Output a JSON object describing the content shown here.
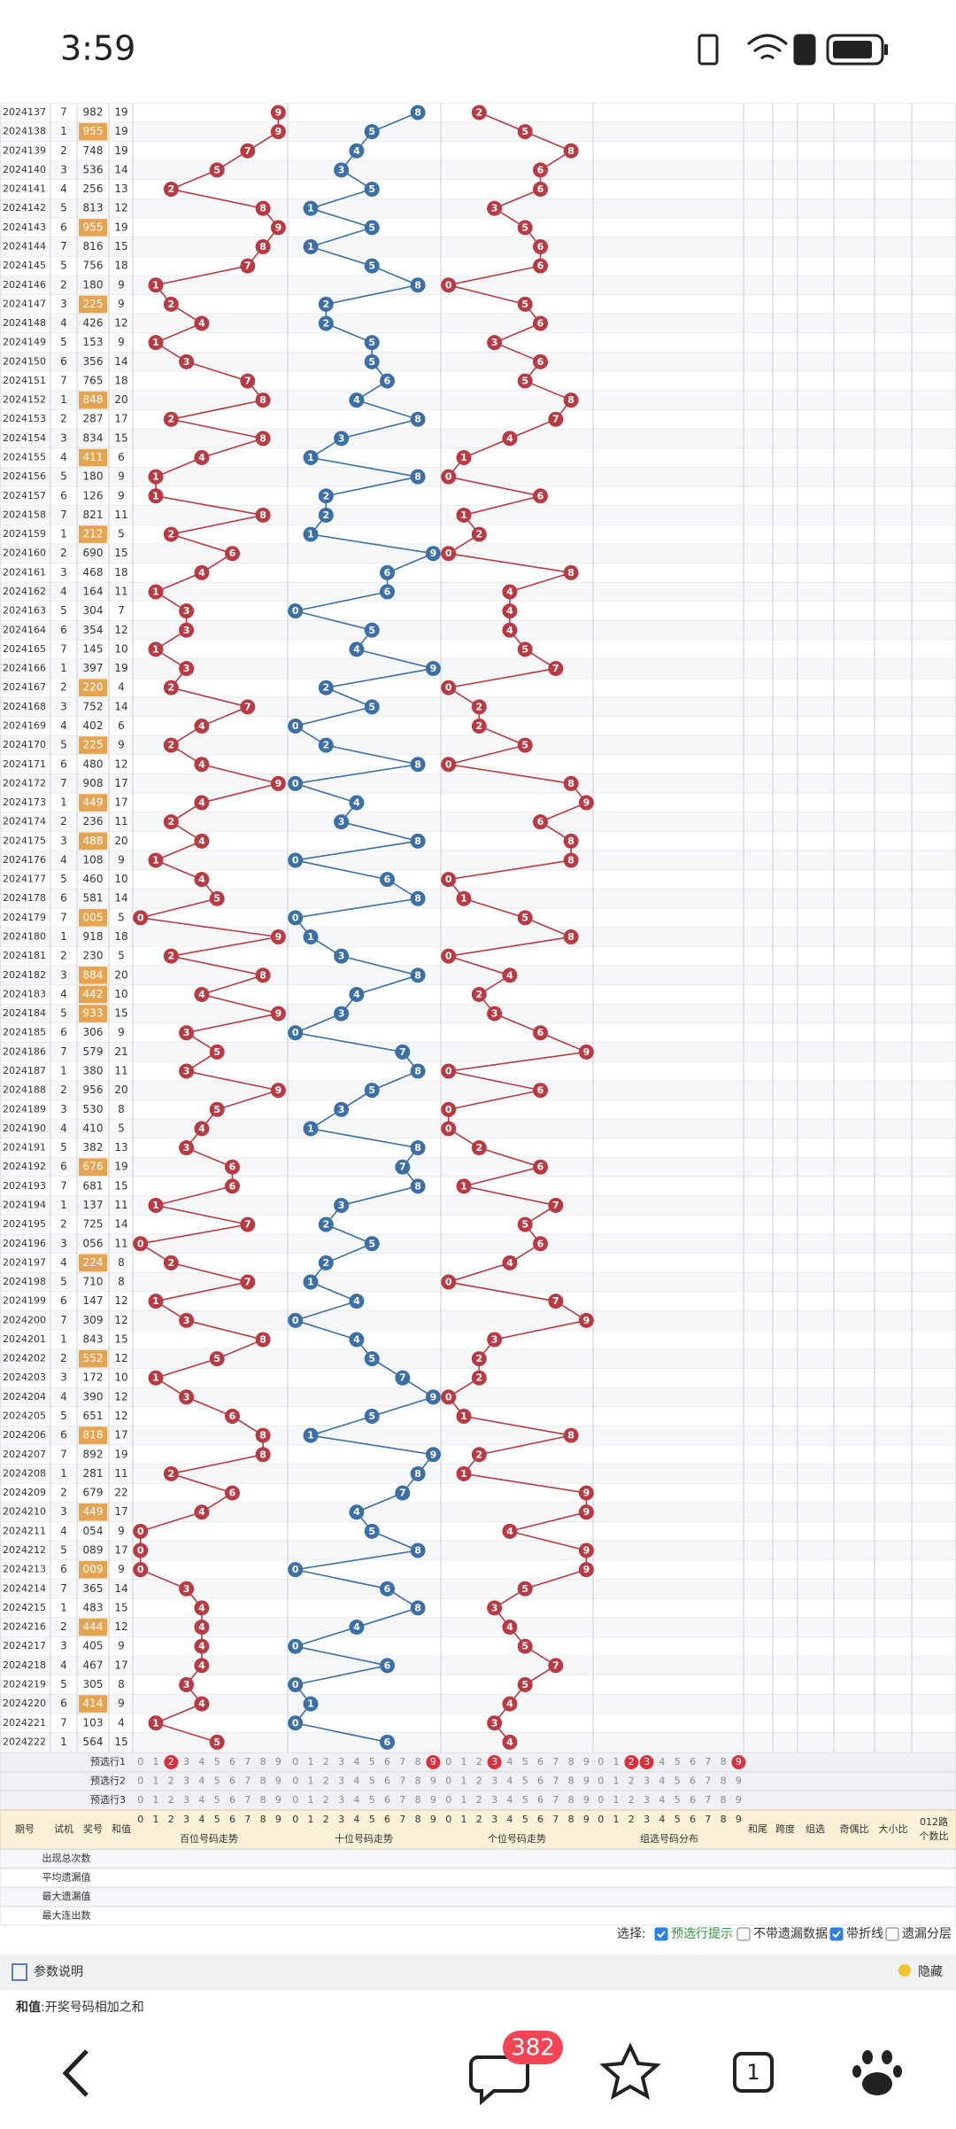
{
  "status_bar": {
    "time": "3:59"
  },
  "table": {
    "rows": [
      [
        "2024137",
        7,
        "982",
        19,
        [
          9,
          8,
          2
        ]
      ],
      [
        "2024138",
        1,
        "955",
        19,
        [
          9,
          5,
          5
        ]
      ],
      [
        "2024139",
        2,
        "748",
        19,
        [
          7,
          4,
          8
        ]
      ],
      [
        "2024140",
        3,
        "536",
        14,
        [
          5,
          3,
          6
        ]
      ],
      [
        "2024141",
        4,
        "256",
        13,
        [
          2,
          5,
          6
        ]
      ],
      [
        "2024142",
        5,
        "813",
        12,
        [
          8,
          1,
          3
        ]
      ],
      [
        "2024143",
        6,
        "955",
        19,
        [
          9,
          5,
          5
        ]
      ],
      [
        "2024144",
        7,
        "816",
        15,
        [
          8,
          1,
          6
        ]
      ],
      [
        "2024145",
        5,
        "756",
        18,
        [
          7,
          5,
          6
        ]
      ],
      [
        "2024146",
        2,
        "180",
        9,
        [
          1,
          8,
          0
        ]
      ],
      [
        "2024147",
        3,
        "225",
        9,
        [
          2,
          2,
          5
        ]
      ],
      [
        "2024148",
        4,
        "426",
        12,
        [
          4,
          2,
          6
        ]
      ],
      [
        "2024149",
        5,
        "153",
        9,
        [
          1,
          5,
          3
        ]
      ],
      [
        "2024150",
        6,
        "356",
        14,
        [
          3,
          5,
          6
        ]
      ],
      [
        "2024151",
        7,
        "765",
        18,
        [
          7,
          6,
          5
        ]
      ],
      [
        "2024152",
        1,
        "848",
        20,
        [
          8,
          4,
          8
        ]
      ],
      [
        "2024153",
        2,
        "287",
        17,
        [
          2,
          8,
          7
        ]
      ],
      [
        "2024154",
        3,
        "834",
        15,
        [
          8,
          3,
          4
        ]
      ],
      [
        "2024155",
        4,
        "411",
        6,
        [
          4,
          1,
          1
        ]
      ],
      [
        "2024156",
        5,
        "180",
        9,
        [
          1,
          8,
          0
        ]
      ],
      [
        "2024157",
        6,
        "126",
        9,
        [
          1,
          2,
          6
        ]
      ],
      [
        "2024158",
        7,
        "821",
        11,
        [
          8,
          2,
          1
        ]
      ],
      [
        "2024159",
        1,
        "212",
        5,
        [
          2,
          1,
          2
        ]
      ],
      [
        "2024160",
        2,
        "690",
        15,
        [
          6,
          9,
          0
        ]
      ],
      [
        "2024161",
        3,
        "468",
        18,
        [
          4,
          6,
          8
        ]
      ],
      [
        "2024162",
        4,
        "164",
        11,
        [
          1,
          6,
          4
        ]
      ],
      [
        "2024163",
        5,
        "304",
        7,
        [
          3,
          0,
          4
        ]
      ],
      [
        "2024164",
        6,
        "354",
        12,
        [
          3,
          5,
          4
        ]
      ],
      [
        "2024165",
        7,
        "145",
        10,
        [
          1,
          4,
          5
        ]
      ],
      [
        "2024166",
        1,
        "397",
        19,
        [
          3,
          9,
          7
        ]
      ],
      [
        "2024167",
        2,
        "220",
        4,
        [
          2,
          2,
          0
        ]
      ],
      [
        "2024168",
        3,
        "752",
        14,
        [
          7,
          5,
          2
        ]
      ],
      [
        "2024169",
        4,
        "402",
        6,
        [
          4,
          0,
          2
        ]
      ],
      [
        "2024170",
        5,
        "225",
        9,
        [
          2,
          2,
          5
        ]
      ],
      [
        "2024171",
        6,
        "480",
        12,
        [
          4,
          8,
          0
        ]
      ],
      [
        "2024172",
        7,
        "908",
        17,
        [
          9,
          0,
          8
        ]
      ],
      [
        "2024173",
        1,
        "449",
        17,
        [
          4,
          4,
          9
        ]
      ],
      [
        "2024174",
        2,
        "236",
        11,
        [
          2,
          3,
          6
        ]
      ],
      [
        "2024175",
        3,
        "488",
        20,
        [
          4,
          8,
          8
        ]
      ],
      [
        "2024176",
        4,
        "108",
        9,
        [
          1,
          0,
          8
        ]
      ],
      [
        "2024177",
        5,
        "460",
        10,
        [
          4,
          6,
          0
        ]
      ],
      [
        "2024178",
        6,
        "581",
        14,
        [
          5,
          8,
          1
        ]
      ],
      [
        "2024179",
        7,
        "005",
        5,
        [
          0,
          0,
          5
        ]
      ],
      [
        "2024180",
        1,
        "918",
        18,
        [
          9,
          1,
          8
        ]
      ],
      [
        "2024181",
        2,
        "230",
        5,
        [
          2,
          3,
          0
        ]
      ],
      [
        "2024182",
        3,
        "884",
        20,
        [
          8,
          8,
          4
        ]
      ],
      [
        "2024183",
        4,
        "442",
        10,
        [
          4,
          4,
          2
        ]
      ],
      [
        "2024184",
        5,
        "933",
        15,
        [
          9,
          3,
          3
        ]
      ],
      [
        "2024185",
        6,
        "306",
        9,
        [
          3,
          0,
          6
        ]
      ],
      [
        "2024186",
        7,
        "579",
        21,
        [
          5,
          7,
          9
        ]
      ],
      [
        "2024187",
        1,
        "380",
        11,
        [
          3,
          8,
          0
        ]
      ],
      [
        "2024188",
        2,
        "956",
        20,
        [
          9,
          5,
          6
        ]
      ],
      [
        "2024189",
        3,
        "530",
        8,
        [
          5,
          3,
          0
        ]
      ],
      [
        "2024190",
        4,
        "410",
        5,
        [
          4,
          1,
          0
        ]
      ],
      [
        "2024191",
        5,
        "382",
        13,
        [
          3,
          8,
          2
        ]
      ],
      [
        "2024192",
        6,
        "676",
        19,
        [
          6,
          7,
          6
        ]
      ],
      [
        "2024193",
        7,
        "681",
        15,
        [
          6,
          8,
          1
        ]
      ],
      [
        "2024194",
        1,
        "137",
        11,
        [
          1,
          3,
          7
        ]
      ],
      [
        "2024195",
        2,
        "725",
        14,
        [
          7,
          2,
          5
        ]
      ],
      [
        "2024196",
        3,
        "056",
        11,
        [
          0,
          5,
          6
        ]
      ],
      [
        "2024197",
        4,
        "224",
        8,
        [
          2,
          2,
          4
        ]
      ],
      [
        "2024198",
        5,
        "710",
        8,
        [
          7,
          1,
          0
        ]
      ],
      [
        "2024199",
        6,
        "147",
        12,
        [
          1,
          4,
          7
        ]
      ],
      [
        "2024200",
        7,
        "309",
        12,
        [
          3,
          0,
          9
        ]
      ],
      [
        "2024201",
        1,
        "843",
        15,
        [
          8,
          4,
          3
        ]
      ],
      [
        "2024202",
        2,
        "552",
        12,
        [
          5,
          5,
          2
        ]
      ],
      [
        "2024203",
        3,
        "172",
        10,
        [
          1,
          7,
          2
        ]
      ],
      [
        "2024204",
        4,
        "390",
        12,
        [
          3,
          9,
          0
        ]
      ],
      [
        "2024205",
        5,
        "651",
        12,
        [
          6,
          5,
          1
        ]
      ],
      [
        "2024206",
        6,
        "818",
        17,
        [
          8,
          1,
          8
        ]
      ],
      [
        "2024207",
        7,
        "892",
        19,
        [
          8,
          9,
          2
        ]
      ],
      [
        "2024208",
        1,
        "281",
        11,
        [
          2,
          8,
          1
        ]
      ],
      [
        "2024209",
        2,
        "679",
        22,
        [
          6,
          7,
          9
        ]
      ],
      [
        "2024210",
        3,
        "449",
        17,
        [
          4,
          4,
          9
        ]
      ],
      [
        "2024211",
        4,
        "054",
        9,
        [
          0,
          5,
          4
        ]
      ],
      [
        "2024212",
        5,
        "089",
        17,
        [
          0,
          8,
          9
        ]
      ],
      [
        "2024213",
        6,
        "009",
        9,
        [
          0,
          0,
          9
        ]
      ],
      [
        "2024214",
        7,
        "365",
        14,
        [
          3,
          6,
          5
        ]
      ],
      [
        "2024215",
        1,
        "483",
        15,
        [
          4,
          8,
          3
        ]
      ],
      [
        "2024216",
        2,
        "444",
        12,
        [
          4,
          4,
          4
        ]
      ],
      [
        "2024217",
        3,
        "405",
        9,
        [
          4,
          0,
          5
        ]
      ],
      [
        "2024218",
        4,
        "467",
        17,
        [
          4,
          6,
          7
        ]
      ],
      [
        "2024219",
        5,
        "305",
        8,
        [
          3,
          0,
          5
        ]
      ],
      [
        "2024220",
        6,
        "414",
        9,
        [
          4,
          1,
          4
        ]
      ],
      [
        "2024221",
        7,
        "103",
        4,
        [
          1,
          0,
          3
        ]
      ],
      [
        "2024222",
        1,
        "564",
        15,
        [
          5,
          6,
          4
        ]
      ]
    ],
    "digit_axis": [
      0,
      1,
      2,
      3,
      4,
      5,
      6,
      7,
      8,
      9
    ],
    "preselect": [
      {
        "label": "预选行1",
        "picks": [
          [
            2
          ],
          [
            9
          ],
          [
            3
          ],
          [
            2,
            3,
            9
          ]
        ]
      },
      {
        "label": "预选行2"
      },
      {
        "label": "预选行3"
      }
    ],
    "header": {
      "period": "期号",
      "trial": "试机",
      "number": "奖号",
      "sum": "和值",
      "areas": [
        "百位号码走势",
        "十位号码走势",
        "个位号码走势",
        "组选号码分布"
      ],
      "right": [
        "和尾",
        "跨度",
        "组选",
        "奇偶比",
        "大小比"
      ],
      "ratio012": [
        "012路",
        "个数比"
      ]
    },
    "stats_labels": [
      "出现总次数",
      "平均遗漏值",
      "最大遗漏值",
      "最大连出数"
    ]
  },
  "controls": {
    "select_label": "选择:",
    "options": [
      {
        "label": "预选行提示",
        "checked": true
      },
      {
        "label": "不带遗漏数据",
        "checked": false
      },
      {
        "label": "带折线",
        "checked": true
      },
      {
        "label": "遗漏分层",
        "checked": false
      }
    ]
  },
  "params": {
    "title": "参数说明",
    "hide": "隐藏",
    "term": "和值",
    "definition": ":开奖号码相加之和"
  },
  "nav": {
    "badge": 382,
    "tab_count": 1
  }
}
